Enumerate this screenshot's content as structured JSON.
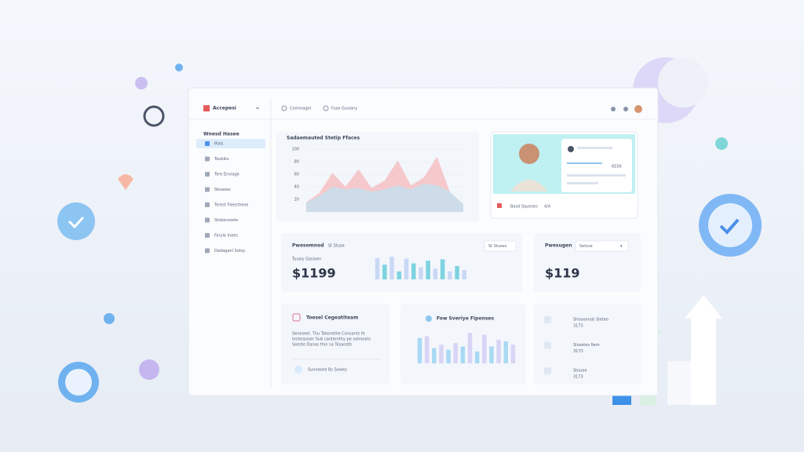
{
  "header": {
    "logo": "Accepesi",
    "tabs": [
      "Commagel",
      "Fuse Gusiany"
    ]
  },
  "sidebar": {
    "heading": "Wnesd Hasee",
    "items": [
      "Mals",
      "Toubiks",
      "Tere Enviage",
      "Sbsaoes",
      "Terest Fleesthese",
      "Stoborsoete",
      "Faryle Inees",
      "Dedaganl Sotsy"
    ]
  },
  "area_chart": {
    "title": "Sadaemauted Stetip Ffaces",
    "ylim": [
      0,
      100
    ],
    "yticks": [
      20,
      40,
      60,
      80,
      100
    ],
    "series": [
      {
        "color": "#f6b9bc",
        "values": [
          15,
          30,
          62,
          40,
          68,
          38,
          50,
          82,
          42,
          55,
          88,
          30,
          12
        ]
      },
      {
        "color": "#bfe2f2",
        "values": [
          15,
          25,
          40,
          36,
          38,
          32,
          36,
          42,
          36,
          45,
          42,
          32,
          12
        ]
      }
    ]
  },
  "profile": {
    "caption": "Basd Squeses",
    "badge": "4/4",
    "stat": "6556"
  },
  "revenue": {
    "label": "Pwesemnod",
    "tag": "St Stuse",
    "button": "St Stuses",
    "sub": "Tusaiy Gasioen",
    "amount": "$1199",
    "bars": {
      "ylim": [
        0,
        100
      ],
      "colors": [
        "#c9d8f5",
        "#7ed3e0"
      ],
      "values": [
        80,
        55,
        85,
        30,
        78,
        60,
        45,
        70,
        40,
        75,
        30,
        50,
        35
      ]
    }
  },
  "balance": {
    "label": "Pwesugen",
    "dropdown": "Selove",
    "amount": "$119"
  },
  "campaign": {
    "title": "Toesel Cegeatiteam",
    "lines": [
      "Seneseel. Thu Tatenethe Consants fe",
      "lecterposer Sub cantemthy pe solmeats",
      "Seeste Danas thin sa Tesaceth"
    ],
    "link": "Sunvesed Bs Sowey"
  },
  "responses": {
    "title": "Fow Sveriye Fiponses",
    "bars": {
      "ylim": [
        0,
        100
      ],
      "colors": [
        "#a9d9f3",
        "#d8d4f5"
      ],
      "values": [
        75,
        80,
        45,
        55,
        40,
        60,
        50,
        90,
        35,
        85,
        50,
        70,
        65,
        55
      ]
    }
  },
  "list": {
    "items": [
      {
        "name": "Shoaoonds Sleteo",
        "value": "3173"
      },
      {
        "name": "Sloostes fiem",
        "value": "3173"
      },
      {
        "name": "Stouee",
        "value": "3173"
      }
    ]
  }
}
